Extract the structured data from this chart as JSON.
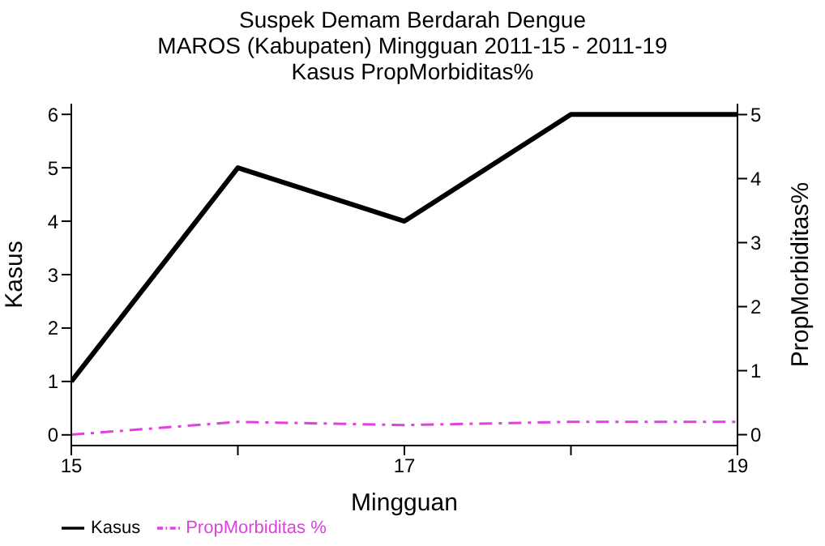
{
  "chart_data": {
    "type": "line",
    "title": "Suspek Demam Berdarah Dengue",
    "subtitle": "MAROS (Kabupaten) Mingguan 2011-15 - 2011-19\nKasus PropMorbiditas%",
    "xlabel": "Mingguan",
    "ylabel": "Kasus",
    "y2label": "PropMorbiditas%",
    "x": [
      15,
      16,
      17,
      18,
      19
    ],
    "series": [
      {
        "name": "Kasus",
        "color": "#000000",
        "values": [
          1,
          5,
          4,
          6,
          6
        ],
        "line_style": "solid"
      },
      {
        "name": "PropMorbiditas %",
        "color": "#e040e0",
        "values": [
          0,
          0.2,
          0.15,
          0.2,
          0.2
        ],
        "axis": "y2",
        "line_style": "dashed"
      }
    ],
    "xlim": [
      15,
      19
    ],
    "xticks": [
      15,
      {
        "value": 16,
        "label": null
      },
      17,
      {
        "value": 18,
        "label": null
      },
      19
    ],
    "ylim": [
      -0.2,
      6.2
    ],
    "yticks": [
      0,
      1,
      2,
      3,
      4,
      5,
      6
    ],
    "y2lim": [
      -0.17,
      5.17
    ],
    "y2ticks": [
      0,
      1,
      2,
      3,
      4,
      5
    ],
    "grid": false,
    "legend": "bottom",
    "marker": "none"
  }
}
